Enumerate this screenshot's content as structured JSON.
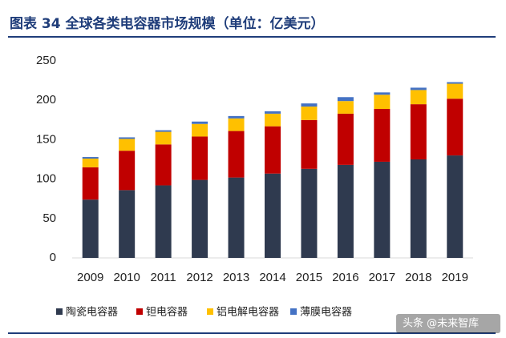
{
  "chart_data": {
    "type": "stacked-bar",
    "title": "图表 34  全球各类电容器市场规模（单位：亿美元）",
    "categories": [
      "2009",
      "2010",
      "2011",
      "2012",
      "2013",
      "2014",
      "2015",
      "2016",
      "2017",
      "2018",
      "2019"
    ],
    "series": [
      {
        "name": "陶瓷电容器",
        "color": "#2f3a4f",
        "values": [
          74,
          86,
          92,
          99,
          102,
          107,
          113,
          118,
          122,
          125,
          130
        ]
      },
      {
        "name": "钽电容器",
        "color": "#c00000",
        "values": [
          41,
          50,
          52,
          55,
          59,
          60,
          62,
          65,
          67,
          70,
          72
        ]
      },
      {
        "name": "铝电解电容器",
        "color": "#ffc000",
        "values": [
          11,
          15,
          16,
          16,
          16,
          16,
          17,
          16,
          18,
          18,
          19
        ]
      },
      {
        "name": "薄膜电容器",
        "color": "#4472c4",
        "values": [
          2,
          2,
          2,
          3,
          3,
          3,
          4,
          5,
          3,
          3,
          2
        ]
      }
    ],
    "ylim": [
      0,
      250
    ],
    "yticks": [
      0,
      50,
      100,
      150,
      200,
      250
    ],
    "watermark": "头条 @未来智库"
  }
}
